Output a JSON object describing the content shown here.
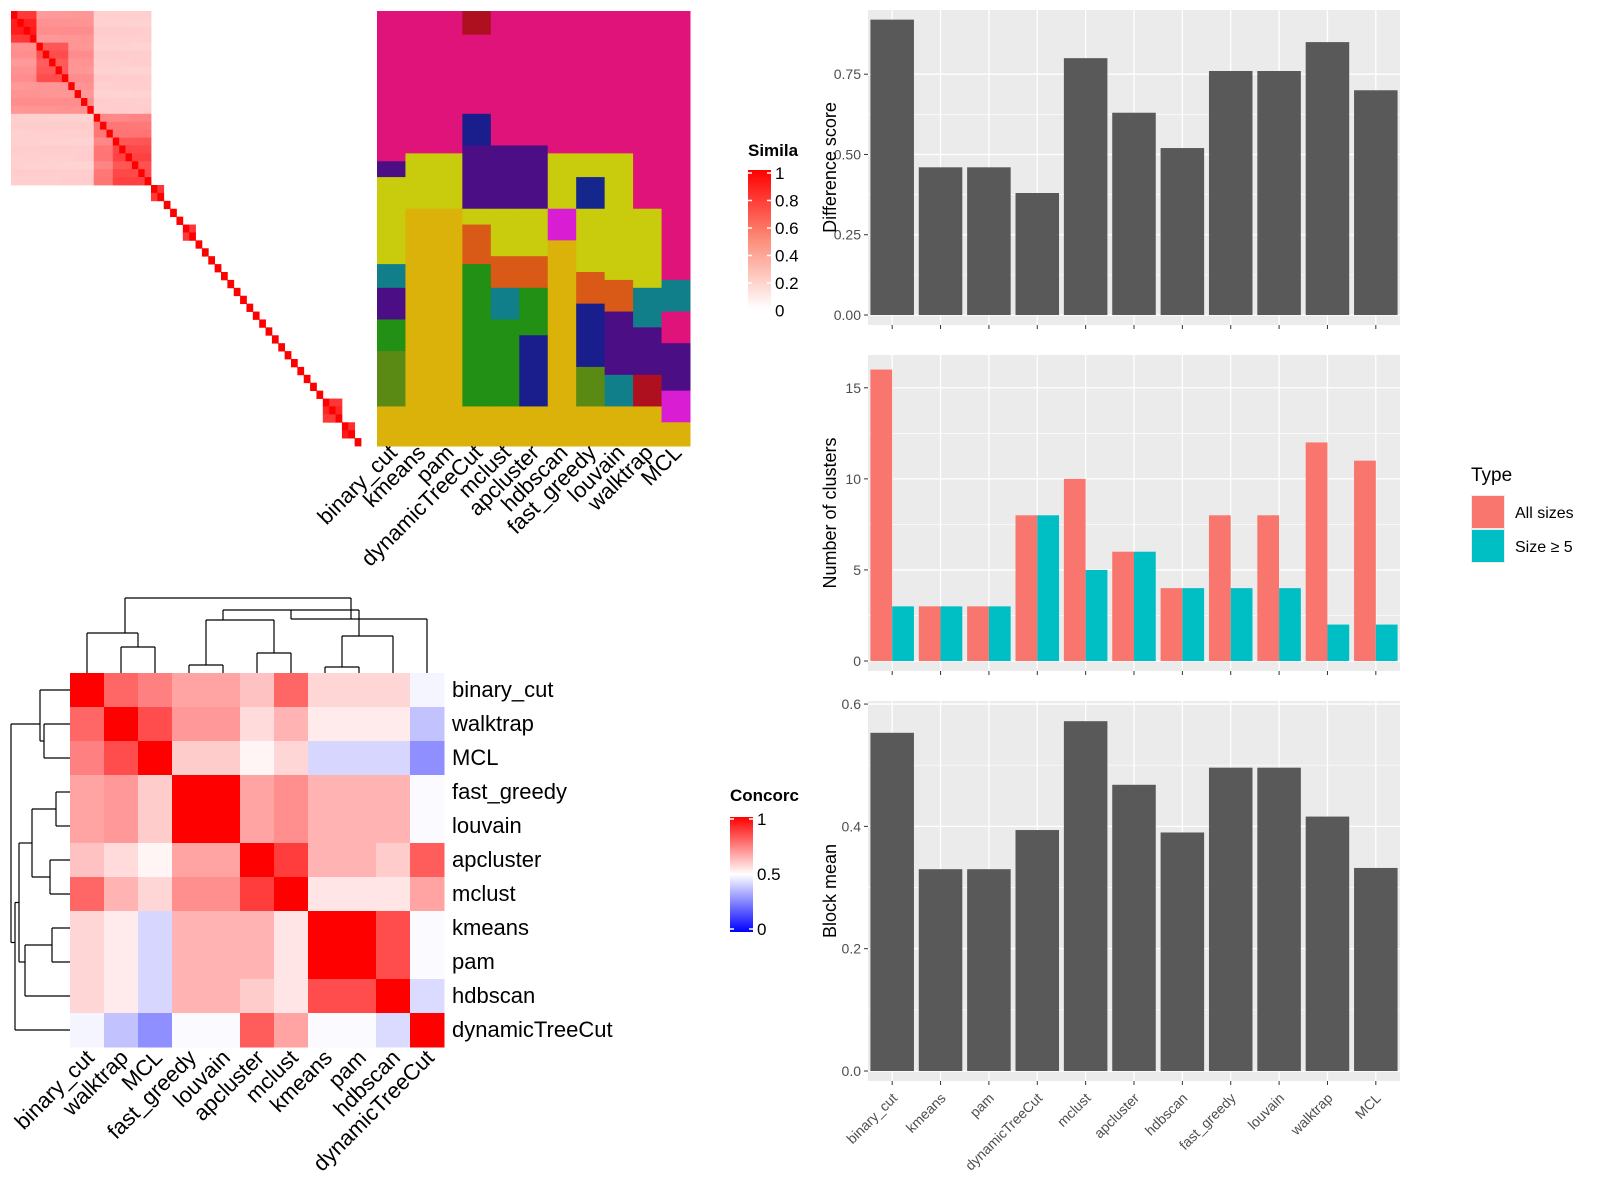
{
  "colors": {
    "panel_bg": "#ebebeb",
    "grid": "#ffffff",
    "bar": "#595959",
    "all_sizes": "#f8766d",
    "size_ge5": "#00bfc4",
    "heat_high": "#ff0000",
    "heat_low": "#ffffff",
    "heat_neg": "#0000ff"
  },
  "similarity_legend": {
    "title": "Simila",
    "labels": [
      "1",
      "0.8",
      "0.6",
      "0.4",
      "0.2",
      "0"
    ]
  },
  "concordance_legend": {
    "title": "Concorc",
    "labels": [
      "1",
      "0.5",
      "0"
    ]
  },
  "chart_data": [
    {
      "type": "heatmap",
      "name": "term similarity matrix",
      "note": "block-diagonal similarity heatmap; blocks listed as [start, size, strength] in term order (0-54)",
      "n_terms": 55,
      "blocks": [
        [
          0,
          4,
          0.9
        ],
        [
          0,
          13,
          0.45
        ],
        [
          4,
          5,
          0.7
        ],
        [
          13,
          9,
          0.55
        ],
        [
          16,
          6,
          0.75
        ],
        [
          0,
          22,
          0.2
        ],
        [
          22,
          2,
          0.85
        ],
        [
          27,
          2,
          0.8
        ],
        [
          49,
          3,
          0.85
        ],
        [
          52,
          2,
          0.9
        ]
      ],
      "legend_title": "Simila"
    },
    {
      "type": "heatmap",
      "name": "cluster assignment matrix",
      "columns": [
        "binary_cut",
        "kmeans",
        "pam",
        "dynamicTreeCut",
        "mclust",
        "apcluster",
        "hdbscan",
        "fast_greedy",
        "louvain",
        "walktrap",
        "MCL"
      ],
      "palette": [
        "#e0137a",
        "#ae1020",
        "#1a1e8c",
        "#c8cc0c",
        "#4b0e84",
        "#d81dd2",
        "#15278c",
        "#228f15",
        "#d85a16",
        "#117f89",
        "#dbb20a",
        "#5a8a14"
      ]
    },
    {
      "type": "bar",
      "categories": [
        "binary_cut",
        "kmeans",
        "pam",
        "dynamicTreeCut",
        "mclust",
        "apcluster",
        "hdbscan",
        "fast_greedy",
        "louvain",
        "walktrap",
        "MCL"
      ],
      "values": [
        0.92,
        0.46,
        0.46,
        0.38,
        0.8,
        0.63,
        0.52,
        0.76,
        0.76,
        0.85,
        0.7
      ],
      "ylabel": "Difference score",
      "ylim": [
        0,
        0.95
      ],
      "yticks": [
        "0.00",
        "0.25",
        "0.50",
        "0.75"
      ],
      "grid": true
    },
    {
      "type": "bar",
      "categories": [
        "binary_cut",
        "kmeans",
        "pam",
        "dynamicTreeCut",
        "mclust",
        "apcluster",
        "hdbscan",
        "fast_greedy",
        "louvain",
        "walktrap",
        "MCL"
      ],
      "series": [
        {
          "name": "All sizes",
          "values": [
            16,
            3,
            3,
            8,
            10,
            6,
            4,
            8,
            8,
            12,
            11
          ]
        },
        {
          "name": "Size ≥ 5",
          "values": [
            3,
            3,
            3,
            8,
            5,
            6,
            4,
            4,
            4,
            2,
            2
          ]
        }
      ],
      "ylabel": "Number of clusters",
      "ylim": [
        0,
        16.8
      ],
      "yticks": [
        "0",
        "5",
        "10",
        "15"
      ],
      "legend_title": "Type",
      "legend_position": "right",
      "grid": true
    },
    {
      "type": "bar",
      "categories": [
        "binary_cut",
        "kmeans",
        "pam",
        "dynamicTreeCut",
        "mclust",
        "apcluster",
        "hdbscan",
        "fast_greedy",
        "louvain",
        "walktrap",
        "MCL"
      ],
      "values": [
        0.553,
        0.33,
        0.33,
        0.394,
        0.572,
        0.468,
        0.39,
        0.496,
        0.496,
        0.416,
        0.332
      ],
      "ylabel": "Block mean",
      "ylim": [
        0,
        0.605
      ],
      "yticks": [
        "0.0",
        "0.2",
        "0.4",
        "0.6"
      ],
      "grid": true
    },
    {
      "type": "heatmap",
      "name": "concordance heatmap",
      "rows": [
        "binary_cut",
        "walktrap",
        "MCL",
        "fast_greedy",
        "louvain",
        "apcluster",
        "mclust",
        "kmeans",
        "pam",
        "hdbscan",
        "dynamicTreeCut"
      ],
      "columns": [
        "binary_cut",
        "walktrap",
        "MCL",
        "fast_greedy",
        "louvain",
        "apcluster",
        "mclust",
        "kmeans",
        "pam",
        "hdbscan",
        "dynamicTreeCut"
      ],
      "values": [
        [
          1.0,
          0.8,
          0.75,
          0.68,
          0.68,
          0.62,
          0.8,
          0.58,
          0.58,
          0.58,
          0.48
        ],
        [
          0.8,
          1.0,
          0.85,
          0.7,
          0.7,
          0.57,
          0.65,
          0.54,
          0.54,
          0.54,
          0.38
        ],
        [
          0.75,
          0.85,
          1.0,
          0.6,
          0.6,
          0.52,
          0.58,
          0.42,
          0.42,
          0.42,
          0.28
        ],
        [
          0.68,
          0.7,
          0.6,
          1.0,
          1.0,
          0.68,
          0.72,
          0.65,
          0.65,
          0.65,
          0.49
        ],
        [
          0.68,
          0.7,
          0.6,
          1.0,
          1.0,
          0.68,
          0.72,
          0.65,
          0.65,
          0.65,
          0.49
        ],
        [
          0.62,
          0.57,
          0.52,
          0.68,
          0.68,
          1.0,
          0.88,
          0.65,
          0.65,
          0.6,
          0.82
        ],
        [
          0.8,
          0.65,
          0.58,
          0.72,
          0.72,
          0.88,
          1.0,
          0.55,
          0.55,
          0.55,
          0.68
        ],
        [
          0.58,
          0.54,
          0.42,
          0.65,
          0.65,
          0.65,
          0.55,
          1.0,
          1.0,
          0.85,
          0.49
        ],
        [
          0.58,
          0.54,
          0.42,
          0.65,
          0.65,
          0.65,
          0.55,
          1.0,
          1.0,
          0.85,
          0.49
        ],
        [
          0.58,
          0.54,
          0.42,
          0.65,
          0.65,
          0.6,
          0.55,
          0.85,
          0.85,
          1.0,
          0.43
        ],
        [
          0.48,
          0.38,
          0.28,
          0.49,
          0.49,
          0.82,
          0.68,
          0.49,
          0.49,
          0.43,
          1.0
        ]
      ],
      "value_range": [
        0,
        1
      ],
      "legend_title": "Concorc"
    }
  ]
}
